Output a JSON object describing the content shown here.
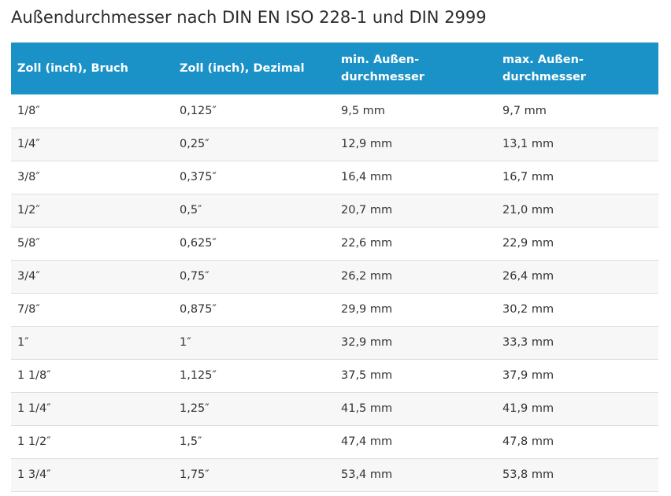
{
  "title": "Außendurchmesser nach DIN EN ISO 228-1 und DIN 2999",
  "table": {
    "headers": [
      [
        "Zoll (inch), Bruch"
      ],
      [
        "Zoll (inch), Dezimal"
      ],
      [
        "min. Außen-",
        "durchmesser"
      ],
      [
        "max. Außen-",
        "durchmesser"
      ]
    ],
    "rows": [
      [
        "1/8″",
        "0,125″",
        "9,5 mm",
        "9,7 mm"
      ],
      [
        "1/4″",
        "0,25″",
        "12,9 mm",
        "13,1 mm"
      ],
      [
        "3/8″",
        "0,375″",
        "16,4 mm",
        "16,7 mm"
      ],
      [
        "1/2″",
        "0,5″",
        "20,7 mm",
        "21,0 mm"
      ],
      [
        "5/8″",
        "0,625″",
        "22,6 mm",
        "22,9 mm"
      ],
      [
        "3/4″",
        "0,75″",
        "26,2 mm",
        "26,4 mm"
      ],
      [
        "7/8″",
        "0,875″",
        "29,9 mm",
        "30,2 mm"
      ],
      [
        "1″",
        "1″",
        "32,9 mm",
        "33,3 mm"
      ],
      [
        "1 1/8″",
        "1,125″",
        "37,5 mm",
        "37,9 mm"
      ],
      [
        "1 1/4″",
        "1,25″",
        "41,5 mm",
        "41,9 mm"
      ],
      [
        "1 1/2″",
        "1,5″",
        "47,4 mm",
        "47,8 mm"
      ],
      [
        "1 3/4″",
        "1,75″",
        "53,4 mm",
        "53,8 mm"
      ]
    ]
  },
  "colors": {
    "header_background": "#1a92c8",
    "header_text": "#ffffff",
    "row_stripe": "#f7f7f7",
    "row_border": "#dedede"
  }
}
